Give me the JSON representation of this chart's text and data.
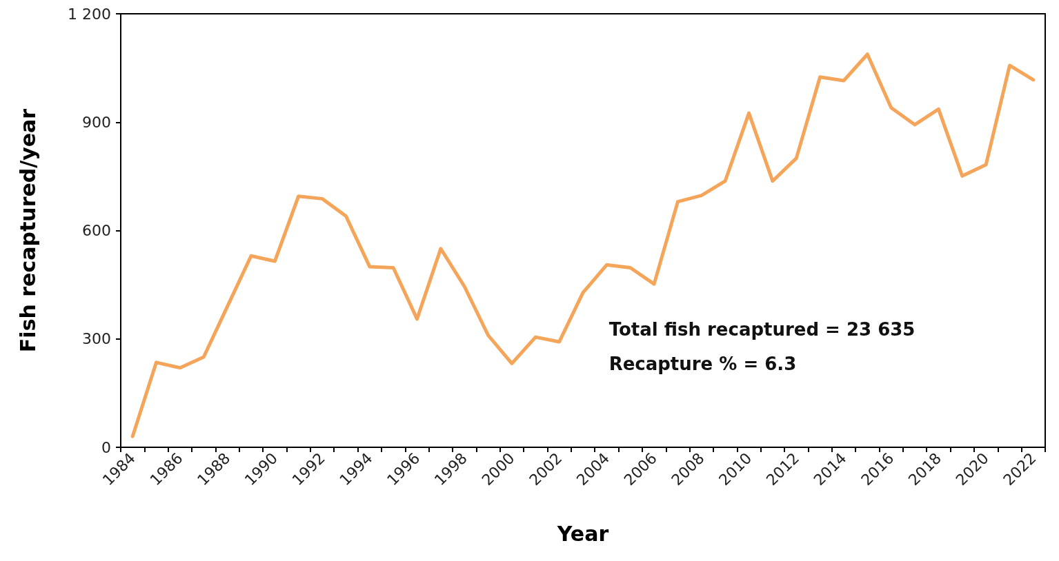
{
  "chart_data": {
    "type": "line",
    "xlabel": "Year",
    "ylabel": "Fish recaptured/year",
    "categories": [
      "1984",
      null,
      "1986",
      null,
      "1988",
      null,
      "1990",
      null,
      "1992",
      null,
      "1994",
      null,
      "1996",
      null,
      "1998",
      null,
      "2000",
      null,
      "2002",
      null,
      "2004",
      null,
      "2006",
      null,
      "2008",
      null,
      "2010",
      null,
      "2012",
      null,
      "2014",
      null,
      "2016",
      null,
      "2018",
      null,
      "2020",
      null,
      "2022"
    ],
    "series": [
      {
        "color": "#f5a55a",
        "values": [
          30,
          235,
          220,
          250,
          390,
          530,
          515,
          695,
          688,
          640,
          500,
          497,
          355,
          550,
          445,
          310,
          232,
          305,
          292,
          428,
          505,
          497,
          452,
          680,
          697,
          737,
          925,
          737,
          800,
          1025,
          1015,
          1088,
          940,
          893,
          936,
          751,
          782,
          1057,
          1017
        ]
      }
    ],
    "ylim": [
      0,
      1200
    ],
    "yticks": [
      0,
      300,
      600,
      900,
      {
        "value": 1200,
        "label": "1 200"
      }
    ],
    "grid": false,
    "marker": "none",
    "line_style": "solid",
    "annotations": [
      "Total fish recaptured = 23 635",
      "Recapture % = 6.3"
    ]
  }
}
